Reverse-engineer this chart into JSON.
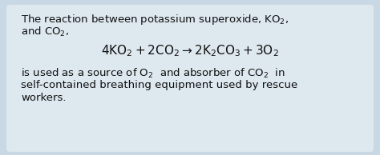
{
  "bg_color": "#c8d8e4",
  "card_color": "#dde8ef",
  "text_color": "#111111",
  "font_size": 9.5,
  "eq_font_size": 11.0
}
